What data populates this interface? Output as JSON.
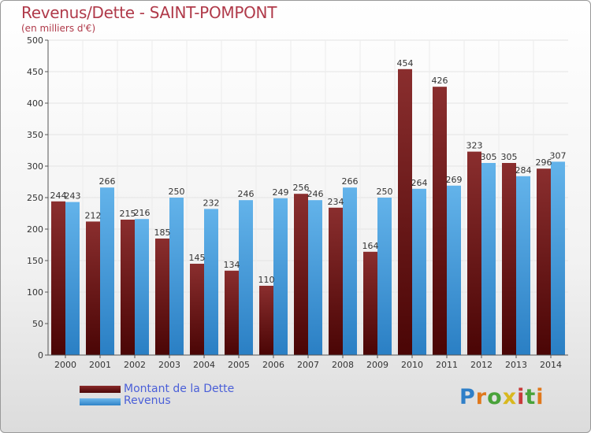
{
  "title": "Revenus/Dette - SAINT-POMPONT",
  "subtitle": "(en milliers d'€)",
  "legend": {
    "dette": "Montant de la Dette",
    "revenus": "Revenus"
  },
  "logo_text": "Proxiti",
  "colors": {
    "dette": "#6e1a1a",
    "revenus": "#3d99de",
    "title": "#b03a4a",
    "legend_text": "#4a5fd8"
  },
  "chart_data": {
    "type": "bar",
    "categories": [
      "2000",
      "2001",
      "2002",
      "2003",
      "2004",
      "2005",
      "2006",
      "2007",
      "2008",
      "2009",
      "2010",
      "2011",
      "2012",
      "2013",
      "2014"
    ],
    "series": [
      {
        "name": "Montant de la Dette",
        "values": [
          244,
          212,
          215,
          185,
          145,
          134,
          110,
          256,
          234,
          164,
          454,
          426,
          323,
          305,
          296
        ]
      },
      {
        "name": "Revenus",
        "values": [
          243,
          266,
          216,
          250,
          232,
          246,
          249,
          246,
          266,
          250,
          264,
          269,
          305,
          284,
          307
        ]
      }
    ],
    "yticks": [
      0,
      50,
      100,
      150,
      200,
      250,
      300,
      350,
      400,
      450,
      500
    ],
    "ylim": [
      0,
      500
    ],
    "grid": true,
    "legend_position": "bottom-left"
  }
}
